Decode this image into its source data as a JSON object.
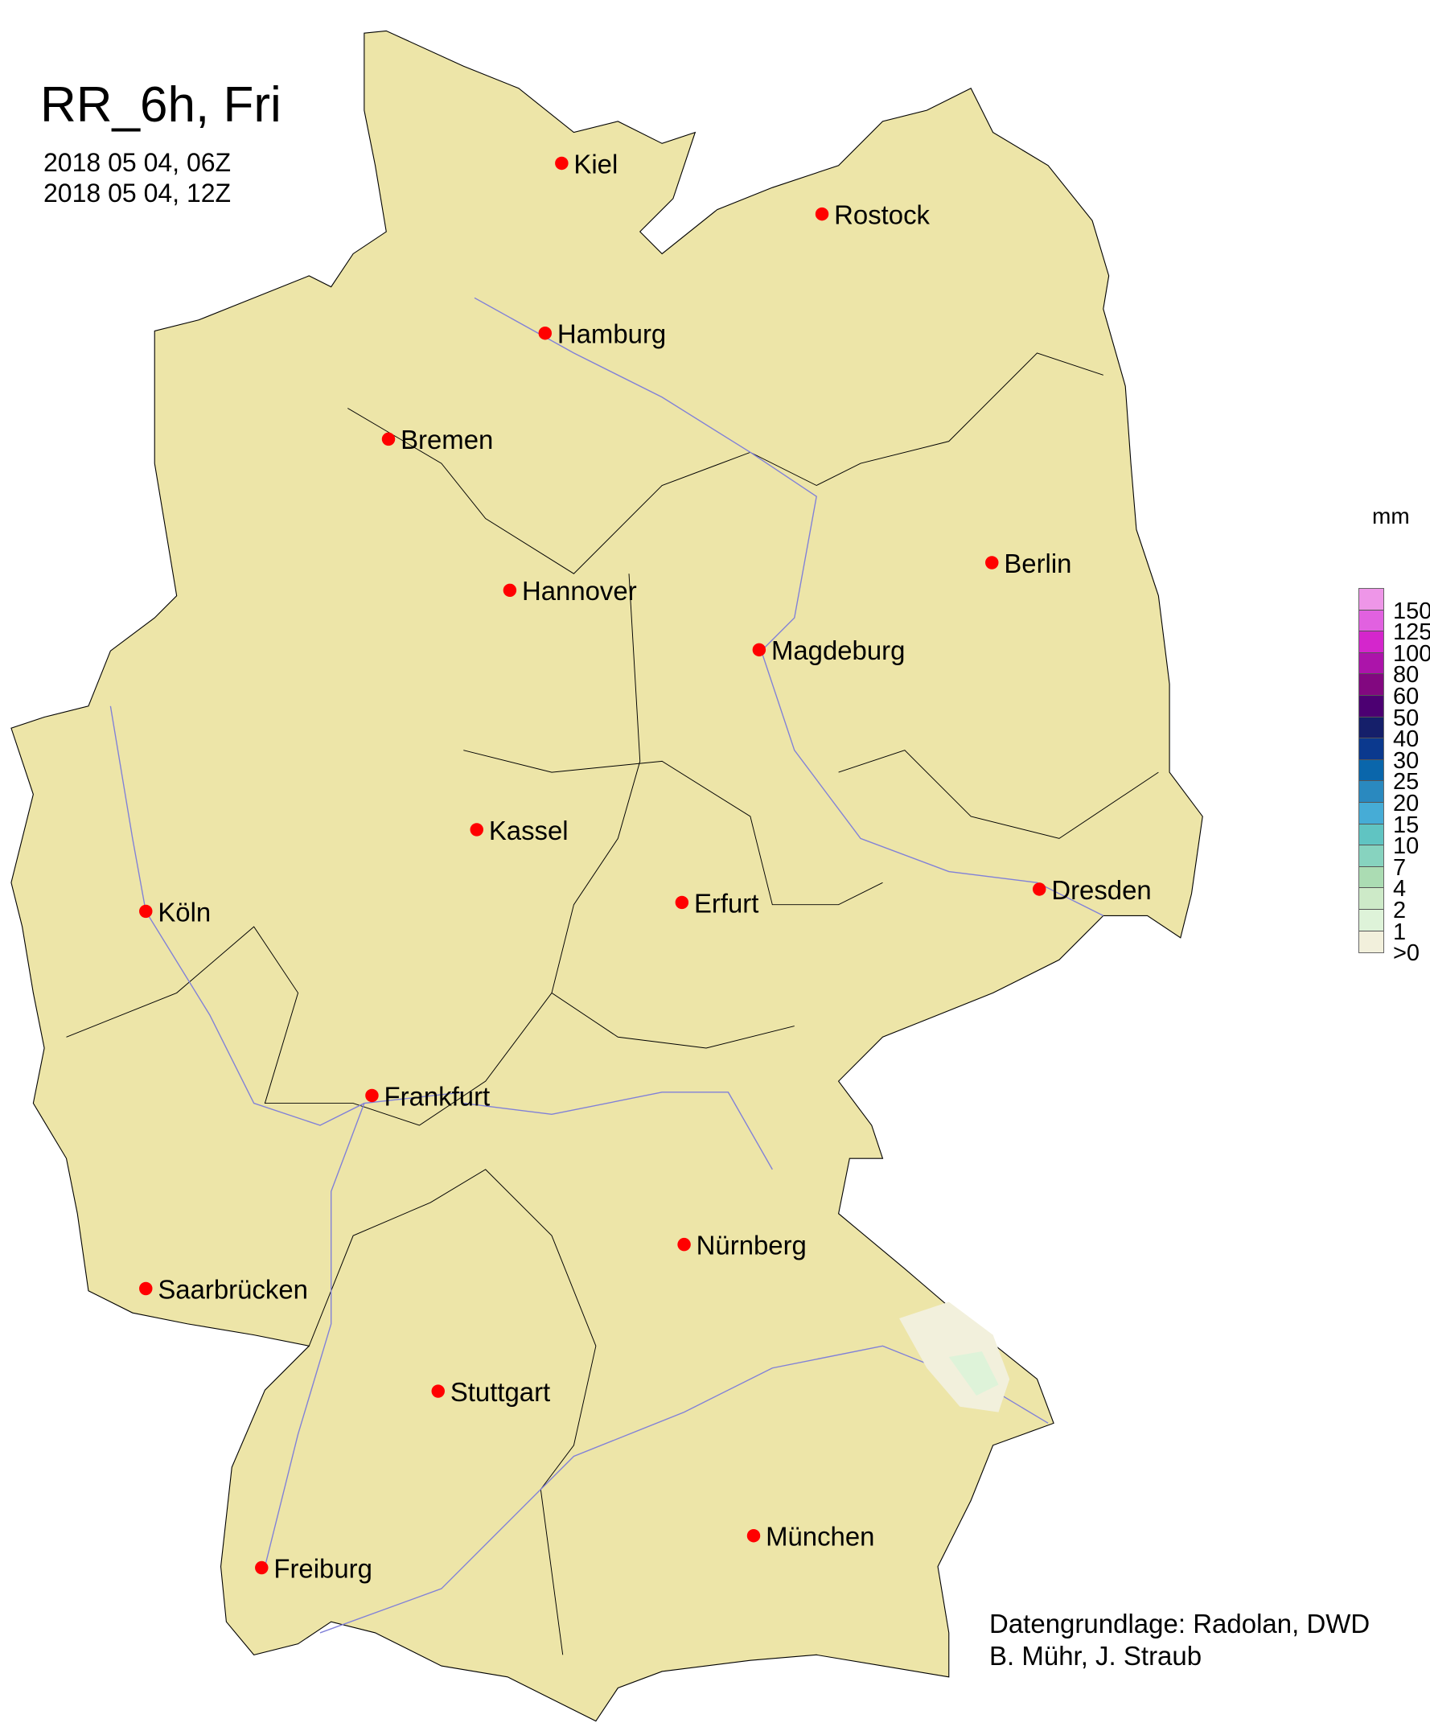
{
  "title": "RR_6h, Fri",
  "time_start": "2018 05 04, 06Z",
  "time_end": "2018 05 04, 12Z",
  "legend": {
    "unit": "mm",
    "ticks": [
      ">0",
      "1",
      "2",
      "4",
      "7",
      "10",
      "15",
      "20",
      "25",
      "30",
      "40",
      "50",
      "60",
      "80",
      "100",
      "125",
      "150"
    ],
    "colors": [
      "#f2f0dc",
      "#def3d9",
      "#cdeac8",
      "#abdcb3",
      "#87d3bf",
      "#60c4c2",
      "#46acd6",
      "#2a89bf",
      "#0a66ab",
      "#0b398e",
      "#151f6a",
      "#4c0072",
      "#820880",
      "#ac14aa",
      "#d426cc",
      "#e161e0",
      "#ee96e8"
    ]
  },
  "map": {
    "land_color": "#ede5a8",
    "border_color": "#000000",
    "river_color": "#8080d8",
    "city_marker_color": "#ff0000",
    "light_precip_color": "#f2f0dc"
  },
  "cities": [
    "Kiel",
    "Rostock",
    "Hamburg",
    "Bremen",
    "Berlin",
    "Hannover",
    "Magdeburg",
    "Kassel",
    "Köln",
    "Erfurt",
    "Dresden",
    "Frankfurt",
    "Nürnberg",
    "Saarbrücken",
    "Stuttgart",
    "München",
    "Freiburg"
  ],
  "credit": {
    "line1": "Datengrundlage: Radolan, DWD",
    "line2": "B. Mühr, J. Straub"
  }
}
